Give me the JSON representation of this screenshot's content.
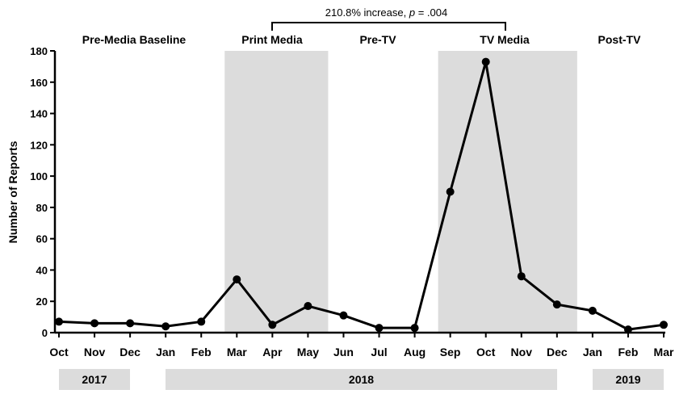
{
  "chart_data": {
    "type": "line",
    "title": "",
    "ylabel": "Number of Reports",
    "xlabel": "",
    "ylim": [
      0,
      180
    ],
    "yticks": [
      0,
      20,
      40,
      60,
      80,
      100,
      120,
      140,
      160,
      180
    ],
    "categories": [
      "Oct",
      "Nov",
      "Dec",
      "Jan",
      "Feb",
      "Mar",
      "Apr",
      "May",
      "Jun",
      "Jul",
      "Aug",
      "Sep",
      "Oct",
      "Nov",
      "Dec",
      "Jan",
      "Feb",
      "Mar"
    ],
    "series": [
      {
        "values": [
          7,
          6,
          6,
          4,
          7,
          34,
          5,
          17,
          11,
          3,
          3,
          90,
          173,
          36,
          18,
          14,
          2,
          5
        ]
      }
    ],
    "periods": [
      {
        "label": "Pre-Media Baseline",
        "shaded": false
      },
      {
        "label": "Print Media",
        "shaded": true
      },
      {
        "label": "Pre-TV",
        "shaded": false
      },
      {
        "label": "TV Media",
        "shaded": true
      },
      {
        "label": "Post-TV",
        "shaded": false
      }
    ],
    "years": [
      "2017",
      "2018",
      "2019"
    ],
    "annotation": {
      "text": "210.8% increase, ",
      "p_symbol": "p",
      "p_value": " = .004"
    },
    "grid": false,
    "colors": {
      "line": "#000000",
      "shade": "#dcdcdc",
      "year_box": "#dcdcdc",
      "text": "#000000"
    }
  }
}
